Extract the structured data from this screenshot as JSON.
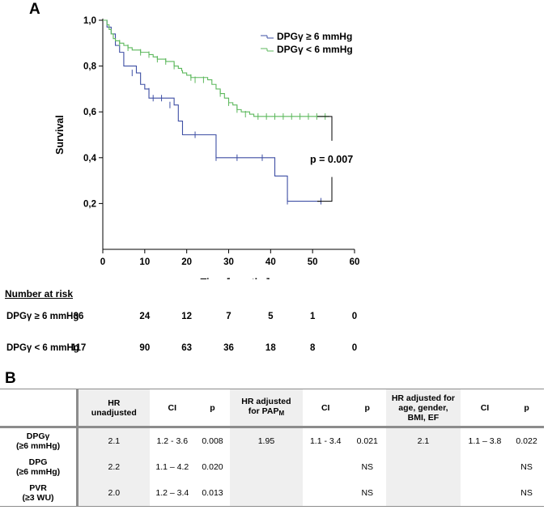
{
  "panel_a_label": "A",
  "panel_b_label": "B",
  "chart_data": {
    "type": "line",
    "subtype": "kaplan-meier",
    "title": "",
    "xlabel": "Time [months]",
    "ylabel": "Survival",
    "xlim": [
      0,
      60
    ],
    "ylim": [
      0.0,
      1.0
    ],
    "xticks": [
      0,
      10,
      20,
      30,
      40,
      50,
      60
    ],
    "yticks": [
      0.2,
      0.4,
      0.6,
      0.8,
      1.0
    ],
    "ytick_labels": [
      "0,2",
      "0,4",
      "0,6",
      "0,8",
      "1,0"
    ],
    "legend_position": "top-right",
    "series": [
      {
        "name": "DPGγ ≥ 6 mmHg",
        "color": "#3e4fa4",
        "steps": [
          [
            0,
            1.0
          ],
          [
            1,
            0.97
          ],
          [
            2,
            0.94
          ],
          [
            3,
            0.89
          ],
          [
            4,
            0.86
          ],
          [
            5,
            0.8
          ],
          [
            8,
            0.77
          ],
          [
            9,
            0.72
          ],
          [
            10,
            0.7
          ],
          [
            11,
            0.66
          ],
          [
            17,
            0.63
          ],
          [
            18,
            0.56
          ],
          [
            19,
            0.5
          ],
          [
            22,
            0.5
          ],
          [
            27,
            0.4
          ],
          [
            41,
            0.32
          ],
          [
            44,
            0.21
          ],
          [
            52,
            0.21
          ]
        ],
        "censor": [
          [
            7,
            0.77
          ],
          [
            11,
            0.69
          ],
          [
            12,
            0.66
          ],
          [
            14,
            0.66
          ],
          [
            16,
            0.63
          ],
          [
            19,
            0.53
          ],
          [
            22,
            0.5
          ],
          [
            27,
            0.4
          ],
          [
            32,
            0.4
          ],
          [
            38,
            0.4
          ],
          [
            44,
            0.21
          ],
          [
            52,
            0.21
          ]
        ]
      },
      {
        "name": "DPGγ < 6 mmHg",
        "color": "#5cb85c",
        "steps": [
          [
            0,
            1.0
          ],
          [
            1,
            0.98
          ],
          [
            1.5,
            0.96
          ],
          [
            2,
            0.94
          ],
          [
            2.5,
            0.92
          ],
          [
            3,
            0.91
          ],
          [
            4,
            0.9
          ],
          [
            5,
            0.89
          ],
          [
            6,
            0.88
          ],
          [
            7,
            0.87
          ],
          [
            9,
            0.86
          ],
          [
            11,
            0.85
          ],
          [
            12,
            0.84
          ],
          [
            13,
            0.83
          ],
          [
            15,
            0.82
          ],
          [
            17,
            0.8
          ],
          [
            18,
            0.79
          ],
          [
            18.8,
            0.78
          ],
          [
            19,
            0.77
          ],
          [
            20,
            0.76
          ],
          [
            21,
            0.75
          ],
          [
            25,
            0.74
          ],
          [
            26,
            0.72
          ],
          [
            27,
            0.7
          ],
          [
            28,
            0.68
          ],
          [
            29,
            0.66
          ],
          [
            30,
            0.64
          ],
          [
            31,
            0.63
          ],
          [
            32,
            0.61
          ],
          [
            33,
            0.6
          ],
          [
            35,
            0.59
          ],
          [
            36,
            0.58
          ],
          [
            54,
            0.58
          ]
        ],
        "censor": [
          [
            4,
            0.9
          ],
          [
            6,
            0.88
          ],
          [
            9,
            0.86
          ],
          [
            11,
            0.85
          ],
          [
            13,
            0.83
          ],
          [
            15,
            0.82
          ],
          [
            17,
            0.8
          ],
          [
            21,
            0.75
          ],
          [
            22,
            0.74
          ],
          [
            24,
            0.74
          ],
          [
            28,
            0.68
          ],
          [
            30,
            0.64
          ],
          [
            32,
            0.61
          ],
          [
            34,
            0.59
          ],
          [
            37,
            0.58
          ],
          [
            39,
            0.58
          ],
          [
            41,
            0.58
          ],
          [
            43,
            0.58
          ],
          [
            45,
            0.58
          ],
          [
            47,
            0.58
          ],
          [
            49,
            0.58
          ],
          [
            51,
            0.58
          ],
          [
            53,
            0.58
          ]
        ]
      }
    ],
    "annotations": [
      {
        "text": "p = 0.007",
        "bracket_between": [
          0.58,
          0.21
        ]
      }
    ]
  },
  "risk_table": {
    "title": "Number at risk",
    "rows": [
      {
        "label": "DPGγ ≥ 6 mmHg",
        "values": [
          "36",
          "24",
          "12",
          "7",
          "5",
          "1",
          "0"
        ]
      },
      {
        "label": "DPGγ < 6 mmHg",
        "values": [
          "117",
          "90",
          "63",
          "36",
          "18",
          "8",
          "0"
        ]
      }
    ]
  },
  "hr_table": {
    "headers": {
      "hr_unadjusted": [
        "HR",
        "unadjusted"
      ],
      "ci1": "CI",
      "p1": "p",
      "hr_pap": [
        "HR adjusted",
        "for PAP"
      ],
      "hr_pap_sub": "M",
      "ci2": "CI",
      "p2": "p",
      "hr_multi": [
        "HR adjusted for",
        "age, gender,",
        "BMI, EF"
      ],
      "ci3": "CI",
      "p3": "p"
    },
    "rows": [
      {
        "name": "DPGγ",
        "sub": "(≥6 mmHg)",
        "hr1": "2.1",
        "ci1": "1.2 - 3.6",
        "p1": "0.008",
        "hr2": "1.95",
        "ci2": "1.1 - 3.4",
        "p2": "0.021",
        "hr3": "2.1",
        "ci3": "1.1 – 3.8",
        "p3": "0.022"
      },
      {
        "name": "DPG",
        "sub": "(≥6 mmHg)",
        "hr1": "2.2",
        "ci1": "1.1 – 4.2",
        "p1": "0.020",
        "hr2": "",
        "ci2": "",
        "p2": "NS",
        "hr3": "",
        "ci3": "",
        "p3": "NS"
      },
      {
        "name": "PVR",
        "sub": "(≥3 WU)",
        "hr1": "2.0",
        "ci1": "1.2 – 3.4",
        "p1": "0.013",
        "hr2": "",
        "ci2": "",
        "p2": "NS",
        "hr3": "",
        "ci3": "",
        "p3": "NS"
      }
    ]
  }
}
